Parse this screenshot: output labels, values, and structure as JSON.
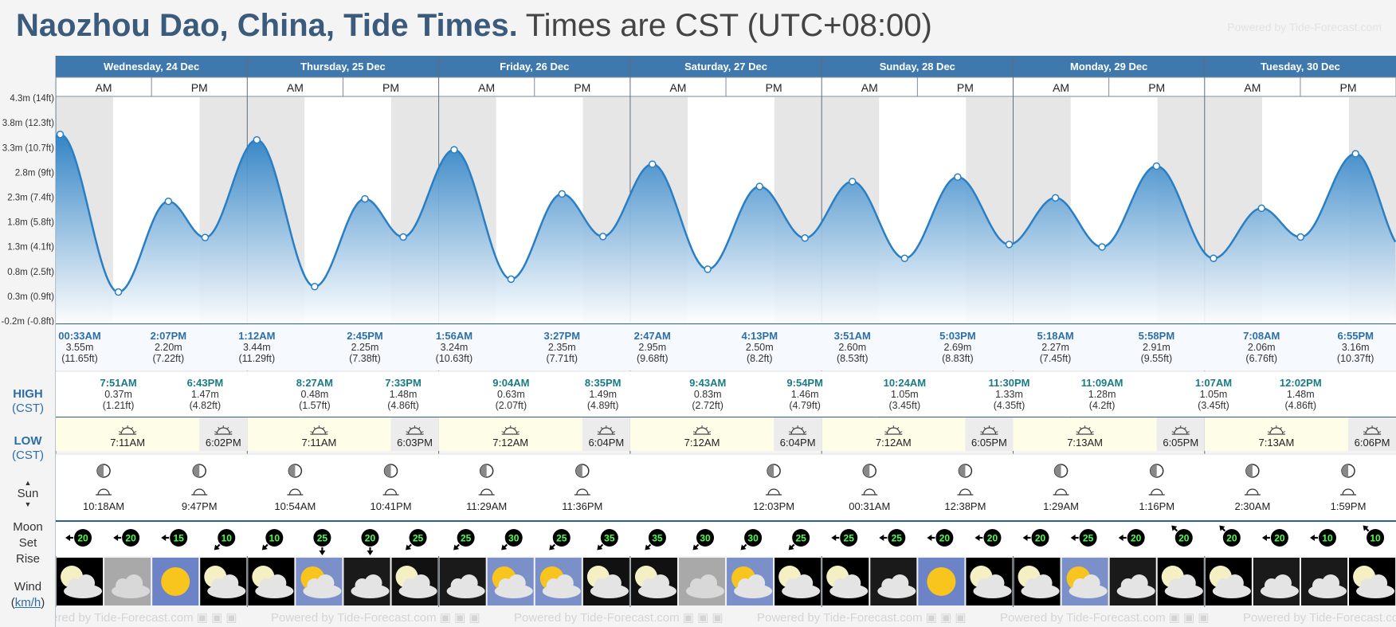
{
  "page": {
    "title": "Naozhou Dao, China, Tide Times.",
    "timezone_note": "Times are CST (UTC+08:00)",
    "powered_by": "Powered by Tide-Forecast.com",
    "row_labels": {
      "high": "HIGH",
      "high_tz": "(CST)",
      "low": "LOW",
      "low_tz": "(CST)",
      "sun": "Sun",
      "moon": "Moon",
      "set": "Set",
      "rise": "Rise",
      "wind": "Wind",
      "wind_unit": "km/h"
    },
    "colors": {
      "header_blue": "#3f78ad",
      "tide_blue": "#2a7fc4",
      "night_shade": "#e6e6e6",
      "day_sun": "#fdfde8"
    }
  },
  "chart_data": {
    "type": "area",
    "days": [
      {
        "label": "Wednesday, 24 Dec",
        "am": "AM",
        "pm": "PM"
      },
      {
        "label": "Thursday, 25 Dec",
        "am": "AM",
        "pm": "PM"
      },
      {
        "label": "Friday, 26 Dec",
        "am": "AM",
        "pm": "PM"
      },
      {
        "label": "Saturday, 27 Dec",
        "am": "AM",
        "pm": "PM"
      },
      {
        "label": "Sunday, 28 Dec",
        "am": "AM",
        "pm": "PM"
      },
      {
        "label": "Monday, 29 Dec",
        "am": "AM",
        "pm": "PM"
      },
      {
        "label": "Tuesday, 30 Dec",
        "am": "AM",
        "pm": "PM"
      }
    ],
    "y_ticks": [
      "-0.2m (-0.8ft)",
      "0.3m (0.9ft)",
      "0.8m (2.5ft)",
      "1.3m (4.1ft)",
      "1.8m (5.8ft)",
      "2.3m (7.4ft)",
      "2.8m (9ft)",
      "3.3m (10.7ft)",
      "3.8m (12.3ft)",
      "4.3m (14ft)"
    ],
    "ylim": [
      -0.2,
      4.3
    ],
    "series": {
      "name": "Tide height (m)",
      "points": [
        {
          "day": 0,
          "time": "00:33AM",
          "kind": "high",
          "m": 3.55,
          "ft": "(11.65ft)"
        },
        {
          "day": 0,
          "time": "7:51AM",
          "kind": "low",
          "m": 0.37,
          "ft": "(1.21ft)"
        },
        {
          "day": 0,
          "time": "2:07PM",
          "kind": "high",
          "m": 2.2,
          "ft": "(7.22ft)"
        },
        {
          "day": 0,
          "time": "6:43PM",
          "kind": "low",
          "m": 1.47,
          "ft": "(4.82ft)"
        },
        {
          "day": 1,
          "time": "1:12AM",
          "kind": "high",
          "m": 3.44,
          "ft": "(11.29ft)"
        },
        {
          "day": 1,
          "time": "8:27AM",
          "kind": "low",
          "m": 0.48,
          "ft": "(1.57ft)"
        },
        {
          "day": 1,
          "time": "2:45PM",
          "kind": "high",
          "m": 2.25,
          "ft": "(7.38ft)"
        },
        {
          "day": 1,
          "time": "7:33PM",
          "kind": "low",
          "m": 1.48,
          "ft": "(4.86ft)"
        },
        {
          "day": 2,
          "time": "1:56AM",
          "kind": "high",
          "m": 3.24,
          "ft": "(10.63ft)"
        },
        {
          "day": 2,
          "time": "9:04AM",
          "kind": "low",
          "m": 0.63,
          "ft": "(2.07ft)"
        },
        {
          "day": 2,
          "time": "3:27PM",
          "kind": "high",
          "m": 2.35,
          "ft": "(7.71ft)"
        },
        {
          "day": 2,
          "time": "8:35PM",
          "kind": "low",
          "m": 1.49,
          "ft": "(4.89ft)"
        },
        {
          "day": 3,
          "time": "2:47AM",
          "kind": "high",
          "m": 2.95,
          "ft": "(9.68ft)"
        },
        {
          "day": 3,
          "time": "9:43AM",
          "kind": "low",
          "m": 0.83,
          "ft": "(2.72ft)"
        },
        {
          "day": 3,
          "time": "4:13PM",
          "kind": "high",
          "m": 2.5,
          "ft": "(8.2ft)"
        },
        {
          "day": 3,
          "time": "9:54PM",
          "kind": "low",
          "m": 1.46,
          "ft": "(4.79ft)"
        },
        {
          "day": 4,
          "time": "3:51AM",
          "kind": "high",
          "m": 2.6,
          "ft": "(8.53ft)"
        },
        {
          "day": 4,
          "time": "10:24AM",
          "kind": "low",
          "m": 1.05,
          "ft": "(3.45ft)"
        },
        {
          "day": 4,
          "time": "5:03PM",
          "kind": "high",
          "m": 2.69,
          "ft": "(8.83ft)"
        },
        {
          "day": 4,
          "time": "11:30PM",
          "kind": "low",
          "m": 1.33,
          "ft": "(4.35ft)"
        },
        {
          "day": 5,
          "time": "5:18AM",
          "kind": "high",
          "m": 2.27,
          "ft": "(7.45ft)"
        },
        {
          "day": 5,
          "time": "11:09AM",
          "kind": "low",
          "m": 1.28,
          "ft": "(4.2ft)"
        },
        {
          "day": 5,
          "time": "5:58PM",
          "kind": "high",
          "m": 2.91,
          "ft": "(9.55ft)"
        },
        {
          "day": 6,
          "time": "1:07AM",
          "kind": "low",
          "m": 1.05,
          "ft": "(3.45ft)"
        },
        {
          "day": 6,
          "time": "7:08AM",
          "kind": "high",
          "m": 2.06,
          "ft": "(6.76ft)"
        },
        {
          "day": 6,
          "time": "12:02PM",
          "kind": "low",
          "m": 1.48,
          "ft": "(4.86ft)"
        },
        {
          "day": 6,
          "time": "6:55PM",
          "kind": "high",
          "m": 3.16,
          "ft": "(10.37ft)"
        }
      ]
    },
    "sun": [
      {
        "rise": "7:11AM",
        "set": "6:02PM"
      },
      {
        "rise": "7:11AM",
        "set": "6:03PM"
      },
      {
        "rise": "7:12AM",
        "set": "6:04PM"
      },
      {
        "rise": "7:12AM",
        "set": "6:04PM"
      },
      {
        "rise": "7:12AM",
        "set": "6:05PM"
      },
      {
        "rise": "7:13AM",
        "set": "6:05PM"
      },
      {
        "rise": "7:13AM",
        "set": "6:06PM"
      }
    ],
    "moon": [
      {
        "day": 0,
        "time": "10:18AM",
        "event": "rise",
        "phase": "waxing-crescent"
      },
      {
        "day": 0,
        "time": "9:47PM",
        "event": "set",
        "phase": "waxing-crescent"
      },
      {
        "day": 1,
        "time": "10:54AM",
        "event": "rise",
        "phase": "waxing-crescent"
      },
      {
        "day": 1,
        "time": "10:41PM",
        "event": "set",
        "phase": "waxing-crescent"
      },
      {
        "day": 2,
        "time": "11:29AM",
        "event": "rise",
        "phase": "first-quarter"
      },
      {
        "day": 2,
        "time": "11:36PM",
        "event": "set",
        "phase": "first-quarter"
      },
      {
        "day": 3,
        "time": "12:03PM",
        "event": "rise",
        "phase": "first-quarter"
      },
      {
        "day": 4,
        "time": "00:31AM",
        "event": "set",
        "phase": "first-quarter"
      },
      {
        "day": 4,
        "time": "12:38PM",
        "event": "rise",
        "phase": "first-quarter"
      },
      {
        "day": 5,
        "time": "1:29AM",
        "event": "set",
        "phase": "waxing-gibbous"
      },
      {
        "day": 5,
        "time": "1:16PM",
        "event": "rise",
        "phase": "waxing-gibbous"
      },
      {
        "day": 6,
        "time": "2:30AM",
        "event": "set",
        "phase": "waxing-gibbous"
      },
      {
        "day": 6,
        "time": "1:59PM",
        "event": "rise",
        "phase": "waxing-gibbous"
      }
    ],
    "wind": [
      {
        "speed": 20,
        "dir": "west"
      },
      {
        "speed": 20,
        "dir": "west"
      },
      {
        "speed": 15,
        "dir": "west"
      },
      {
        "speed": 10,
        "dir": "south-west"
      },
      {
        "speed": 10,
        "dir": "south-west"
      },
      {
        "speed": 25,
        "dir": "south"
      },
      {
        "speed": 20,
        "dir": "south"
      },
      {
        "speed": 25,
        "dir": "south-west"
      },
      {
        "speed": 25,
        "dir": "south-west"
      },
      {
        "speed": 30,
        "dir": "south-west"
      },
      {
        "speed": 25,
        "dir": "south-west"
      },
      {
        "speed": 35,
        "dir": "south-west"
      },
      {
        "speed": 35,
        "dir": "south-west"
      },
      {
        "speed": 30,
        "dir": "south-west"
      },
      {
        "speed": 30,
        "dir": "south-west"
      },
      {
        "speed": 25,
        "dir": "south-west"
      },
      {
        "speed": 25,
        "dir": "west"
      },
      {
        "speed": 25,
        "dir": "west"
      },
      {
        "speed": 20,
        "dir": "west"
      },
      {
        "speed": 20,
        "dir": "west"
      },
      {
        "speed": 20,
        "dir": "west"
      },
      {
        "speed": 25,
        "dir": "west"
      },
      {
        "speed": 20,
        "dir": "west"
      },
      {
        "speed": 20,
        "dir": "north-west"
      },
      {
        "speed": 20,
        "dir": "north-west"
      },
      {
        "speed": 20,
        "dir": "west"
      },
      {
        "speed": 10,
        "dir": "west"
      },
      {
        "speed": 10,
        "dir": "north-west"
      }
    ],
    "weather": [
      "night-partly-cloudy",
      "overcast",
      "sunny",
      "night-partly-cloudy",
      "night-partly-cloudy",
      "partly-sunny",
      "cloudy",
      "night-cloudy",
      "cloudy",
      "partly-sunny",
      "partly-sunny",
      "night-cloudy",
      "night-cloudy",
      "overcast",
      "partly-sunny",
      "night-partly-cloudy",
      "night-partly-cloudy",
      "cloudy",
      "sunny",
      "night-partly-cloudy",
      "night-partly-cloudy",
      "partly-sunny",
      "cloudy",
      "night-partly-cloudy",
      "night-partly-cloudy",
      "cloudy",
      "cloudy",
      "night-partly-cloudy"
    ]
  }
}
